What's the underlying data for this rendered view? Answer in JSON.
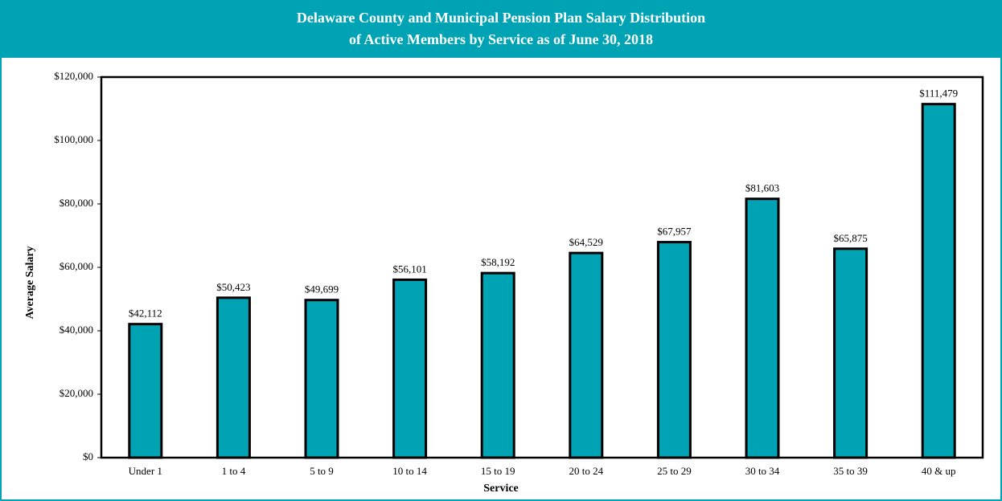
{
  "chart_data": {
    "type": "bar",
    "title": [
      "Delaware County and Municipal Pension Plan Salary Distribution",
      "of Active Members by Service as of June 30, 2018"
    ],
    "x_label": "Service",
    "y_label": "Average Salary",
    "categories": [
      "Under 1",
      "1 to 4",
      "5 to 9",
      "10 to 14",
      "15 to 19",
      "20 to 24",
      "25 to 29",
      "30 to 34",
      "35 to 39",
      "40 & up"
    ],
    "values": [
      42112,
      50423,
      49699,
      56101,
      58192,
      64529,
      67957,
      81603,
      65875,
      111479
    ],
    "value_labels": [
      "$42,112",
      "$50,423",
      "$49,699",
      "$56,101",
      "$58,192",
      "$64,529",
      "$67,957",
      "$81,603",
      "$65,875",
      "$111,479"
    ],
    "color": "#00a3b4",
    "ylim": [
      0,
      120000
    ],
    "yticks": [
      {
        "value": 0,
        "label": "$0"
      },
      {
        "value": 20000,
        "label": "$20,000"
      },
      {
        "value": 40000,
        "label": "$40,000"
      },
      {
        "value": 60000,
        "label": "$60,000"
      },
      {
        "value": 80000,
        "label": "$80,000"
      },
      {
        "value": 100000,
        "label": "$100,000"
      },
      {
        "value": 120000,
        "label": "$120,000"
      }
    ],
    "grid": false
  }
}
